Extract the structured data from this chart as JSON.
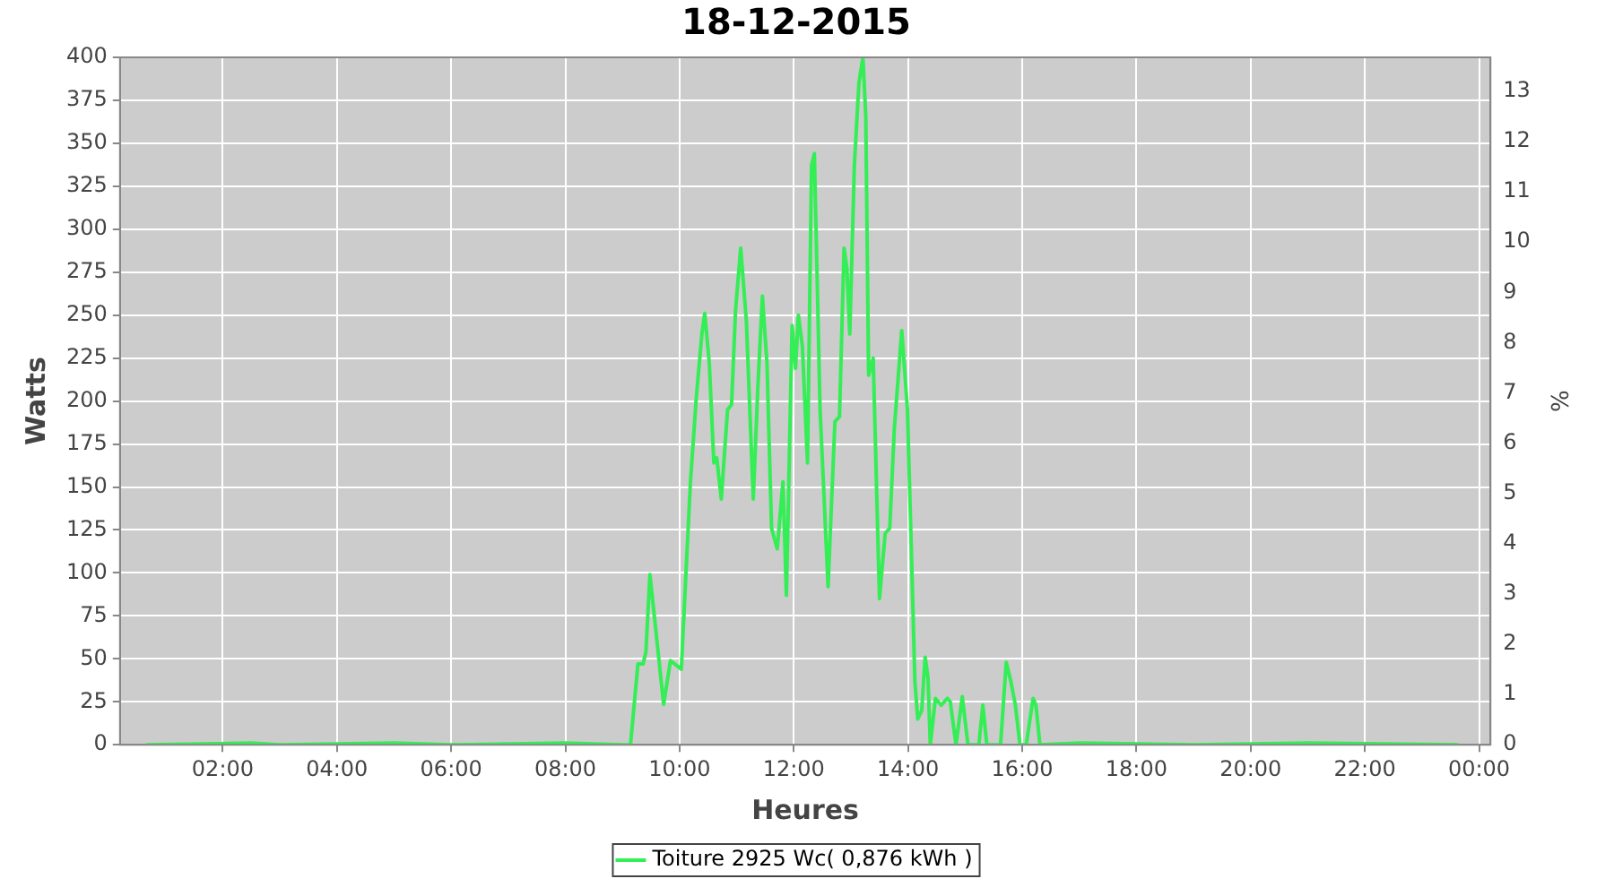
{
  "chart_data": {
    "type": "line",
    "title": "18-12-2015",
    "xlabel": "Heures",
    "ylabel": "Watts",
    "y2label": "%",
    "x": [
      0.66,
      2.5,
      3.0,
      5.0,
      6.0,
      8.0,
      9.0,
      9.14,
      9.27,
      9.36,
      9.41,
      9.48,
      9.57,
      9.72,
      9.84,
      10.03,
      10.11,
      10.19,
      10.29,
      10.39,
      10.44,
      10.52,
      10.6,
      10.65,
      10.73,
      10.84,
      10.91,
      10.98,
      11.07,
      11.17,
      11.29,
      11.37,
      11.45,
      11.53,
      11.61,
      11.71,
      11.81,
      11.87,
      11.97,
      12.03,
      12.08,
      12.15,
      12.24,
      12.31,
      12.36,
      12.46,
      12.6,
      12.72,
      12.8,
      12.88,
      12.93,
      12.98,
      13.06,
      13.14,
      13.21,
      13.26,
      13.31,
      13.39,
      13.5,
      13.6,
      13.68,
      13.76,
      13.89,
      13.99,
      14.07,
      14.12,
      14.17,
      14.24,
      14.3,
      14.35,
      14.39,
      14.48,
      14.58,
      14.69,
      14.74,
      14.84,
      14.95,
      15.05,
      15.24,
      15.31,
      15.38,
      15.62,
      15.72,
      15.8,
      15.88,
      15.96,
      16.07,
      16.19,
      16.24,
      16.31,
      17.0,
      19.0,
      21.0,
      23.64
    ],
    "series": [
      {
        "name": "Toiture 2925 Wc( 0,876 kWh )",
        "color": "#33ee55",
        "values": [
          0,
          1,
          0,
          1,
          0,
          1,
          0,
          0,
          47,
          47,
          54,
          99,
          71,
          23.5,
          49,
          44,
          99,
          153,
          201,
          239,
          251,
          222,
          164,
          167,
          143,
          195,
          198,
          253,
          289,
          246,
          143,
          208,
          261,
          222,
          126,
          114,
          153,
          87,
          244,
          219,
          250,
          232,
          164,
          337,
          344,
          195,
          92,
          188,
          191,
          289,
          277,
          239,
          337,
          385,
          400,
          366,
          215,
          225,
          85,
          123,
          126,
          184,
          241,
          195,
          99,
          37,
          15,
          20,
          51,
          39,
          0,
          27,
          23,
          27,
          25,
          0,
          28,
          0,
          0,
          23,
          0,
          0,
          48,
          37,
          23,
          0,
          0,
          27,
          23,
          0,
          1,
          0,
          1,
          0
        ]
      }
    ],
    "xlim": [
      0.2,
      24.2
    ],
    "xticks": [
      {
        "value": 2,
        "label": "02:00"
      },
      {
        "value": 4,
        "label": "04:00"
      },
      {
        "value": 6,
        "label": "06:00"
      },
      {
        "value": 8,
        "label": "08:00"
      },
      {
        "value": 10,
        "label": "10:00"
      },
      {
        "value": 12,
        "label": "12:00"
      },
      {
        "value": 14,
        "label": "14:00"
      },
      {
        "value": 16,
        "label": "16:00"
      },
      {
        "value": 18,
        "label": "18:00"
      },
      {
        "value": 20,
        "label": "20:00"
      },
      {
        "value": 22,
        "label": "22:00"
      },
      {
        "value": 24,
        "label": "00:00"
      }
    ],
    "ylim": [
      0,
      400
    ],
    "yticks": [
      0,
      25,
      50,
      75,
      100,
      125,
      150,
      175,
      200,
      225,
      250,
      275,
      300,
      325,
      350,
      375,
      400
    ],
    "y2lim": [
      0,
      13.675
    ],
    "y2ticks": [
      0,
      1,
      2,
      3,
      4,
      5,
      6,
      7,
      8,
      9,
      10,
      11,
      12,
      13
    ],
    "grid": true,
    "legend": "bottom",
    "marker": "none",
    "line_style": "solid"
  }
}
